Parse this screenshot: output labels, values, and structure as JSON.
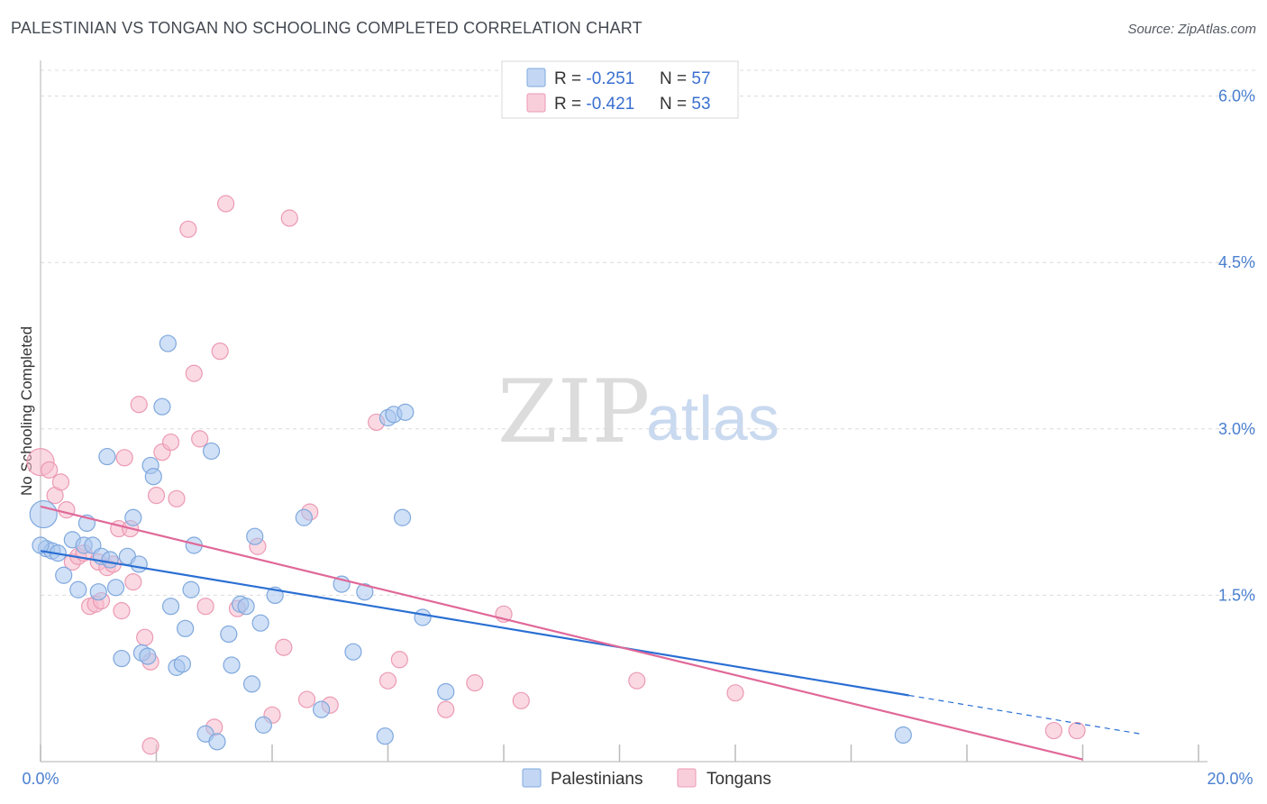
{
  "header": {
    "title": "PALESTINIAN VS TONGAN NO SCHOOLING COMPLETED CORRELATION CHART",
    "source": "Source: ZipAtlas.com"
  },
  "watermark": {
    "zip": "ZIP",
    "atlas": "atlas"
  },
  "colors": {
    "palestinian_fill": "#a9c6ef",
    "palestinian_stroke": "#7fa8de",
    "palestinian_line": "#2a6fd3",
    "tongan_fill": "#f6b9cc",
    "tongan_stroke": "#ec9ab4",
    "tongan_line": "#e06898",
    "tick": "#4a7fd0",
    "grid": "#dcdcdc"
  },
  "legend": {
    "rows": [
      {
        "r_label": "R = ",
        "r_value": "-0.251",
        "n_label": "N = ",
        "n_value": "57"
      },
      {
        "r_label": "R = ",
        "r_value": "-0.421",
        "n_label": "N = ",
        "n_value": "53"
      }
    ]
  },
  "chart_data": {
    "type": "scatter",
    "title": "PALESTINIAN VS TONGAN NO SCHOOLING COMPLETED CORRELATION CHART",
    "xlabel": "",
    "ylabel": "No Schooling Completed",
    "xlim": [
      0,
      20
    ],
    "ylim": [
      0,
      6.2
    ],
    "x_tick_labels": [
      "0.0%",
      "20.0%"
    ],
    "y_ticks": [
      1.5,
      3.0,
      4.5,
      6.0
    ],
    "y_tick_labels": [
      "1.5%",
      "3.0%",
      "4.5%",
      "6.0%"
    ],
    "grid": true,
    "series": [
      {
        "name": "Palestinians",
        "r": -0.251,
        "n": 57,
        "trend": {
          "x0": 0,
          "y0": 1.9,
          "x_solid_end": 15.0,
          "x1": 19.0,
          "y1": 0.25
        },
        "points": [
          [
            0.05,
            2.23
          ],
          [
            0.1,
            1.92
          ],
          [
            0.2,
            1.9
          ],
          [
            0.3,
            1.88
          ],
          [
            0.4,
            1.68
          ],
          [
            0.55,
            2.0
          ],
          [
            0.65,
            1.55
          ],
          [
            0.75,
            1.95
          ],
          [
            0.8,
            2.15
          ],
          [
            0.9,
            1.95
          ],
          [
            1.0,
            1.53
          ],
          [
            1.05,
            1.85
          ],
          [
            1.15,
            2.75
          ],
          [
            1.2,
            1.82
          ],
          [
            1.3,
            1.57
          ],
          [
            1.4,
            0.93
          ],
          [
            1.5,
            1.85
          ],
          [
            1.6,
            2.2
          ],
          [
            1.7,
            1.78
          ],
          [
            1.75,
            0.98
          ],
          [
            1.85,
            0.95
          ],
          [
            1.9,
            2.67
          ],
          [
            1.95,
            2.57
          ],
          [
            2.1,
            3.2
          ],
          [
            2.2,
            3.77
          ],
          [
            2.25,
            1.4
          ],
          [
            2.35,
            0.85
          ],
          [
            2.45,
            0.88
          ],
          [
            2.5,
            1.2
          ],
          [
            2.6,
            1.55
          ],
          [
            2.65,
            1.95
          ],
          [
            2.85,
            0.25
          ],
          [
            2.95,
            2.8
          ],
          [
            3.05,
            0.18
          ],
          [
            3.25,
            1.15
          ],
          [
            3.3,
            0.87
          ],
          [
            3.45,
            1.42
          ],
          [
            3.55,
            1.4
          ],
          [
            3.65,
            0.7
          ],
          [
            3.7,
            2.03
          ],
          [
            3.8,
            1.25
          ],
          [
            3.85,
            0.33
          ],
          [
            4.05,
            1.5
          ],
          [
            4.55,
            2.2
          ],
          [
            4.85,
            0.47
          ],
          [
            5.2,
            1.6
          ],
          [
            5.4,
            0.99
          ],
          [
            5.6,
            1.53
          ],
          [
            5.95,
            0.23
          ],
          [
            6.0,
            3.1
          ],
          [
            6.1,
            3.13
          ],
          [
            6.3,
            3.15
          ],
          [
            6.25,
            2.2
          ],
          [
            6.6,
            1.3
          ],
          [
            7.0,
            0.63
          ],
          [
            14.9,
            0.24
          ],
          [
            0.0,
            1.95
          ]
        ]
      },
      {
        "name": "Tongans",
        "r": -0.421,
        "n": 53,
        "trend": {
          "x0": 0,
          "y0": 2.3,
          "x1": 18.0,
          "y1": 0.02
        },
        "points": [
          [
            0.0,
            2.7
          ],
          [
            0.15,
            2.63
          ],
          [
            0.25,
            2.4
          ],
          [
            0.35,
            2.52
          ],
          [
            0.45,
            2.27
          ],
          [
            0.55,
            1.8
          ],
          [
            0.65,
            1.85
          ],
          [
            0.75,
            1.88
          ],
          [
            0.85,
            1.4
          ],
          [
            0.95,
            1.42
          ],
          [
            1.0,
            1.8
          ],
          [
            1.05,
            1.45
          ],
          [
            1.15,
            1.75
          ],
          [
            1.25,
            1.78
          ],
          [
            1.35,
            2.1
          ],
          [
            1.4,
            1.36
          ],
          [
            1.45,
            2.74
          ],
          [
            1.55,
            2.1
          ],
          [
            1.6,
            1.62
          ],
          [
            1.7,
            3.22
          ],
          [
            1.8,
            1.12
          ],
          [
            1.9,
            0.9
          ],
          [
            2.0,
            2.4
          ],
          [
            2.1,
            2.79
          ],
          [
            2.25,
            2.88
          ],
          [
            2.35,
            2.37
          ],
          [
            2.55,
            4.8
          ],
          [
            2.65,
            3.5
          ],
          [
            2.75,
            2.91
          ],
          [
            2.85,
            1.4
          ],
          [
            3.0,
            0.31
          ],
          [
            3.1,
            3.7
          ],
          [
            3.2,
            5.03
          ],
          [
            3.4,
            1.38
          ],
          [
            3.75,
            1.94
          ],
          [
            4.0,
            0.42
          ],
          [
            4.2,
            1.03
          ],
          [
            4.3,
            4.9
          ],
          [
            4.6,
            0.56
          ],
          [
            4.65,
            2.25
          ],
          [
            5.0,
            0.51
          ],
          [
            5.8,
            3.06
          ],
          [
            6.0,
            0.73
          ],
          [
            6.2,
            0.92
          ],
          [
            7.0,
            0.47
          ],
          [
            7.5,
            0.71
          ],
          [
            8.0,
            1.33
          ],
          [
            8.3,
            0.55
          ],
          [
            10.3,
            0.73
          ],
          [
            12.0,
            0.62
          ],
          [
            17.5,
            0.28
          ],
          [
            17.9,
            0.28
          ],
          [
            1.9,
            0.14
          ]
        ]
      }
    ]
  }
}
